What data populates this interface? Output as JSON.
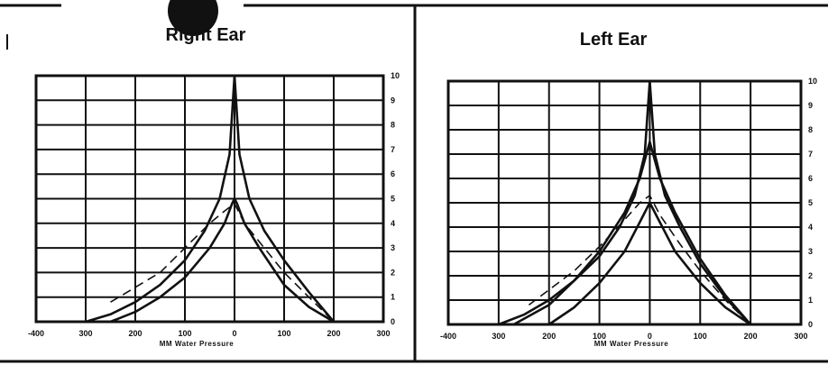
{
  "chart_data": [
    {
      "type": "line",
      "title": "Right Ear",
      "xlabel": "MM Water Pressure",
      "x_ticks": [
        "-400",
        "300",
        "200",
        "100",
        "0",
        "100",
        "200",
        "300"
      ],
      "y_ticks": [
        "0",
        "1",
        "2",
        "3",
        "4",
        "5",
        "6",
        "7",
        "8",
        "9",
        "10"
      ],
      "xlim": [
        -400,
        300
      ],
      "ylim": [
        0,
        10
      ],
      "grid": true,
      "series": [
        {
          "style": "solid",
          "x": [
            -300,
            -250,
            -200,
            -150,
            -100,
            -60,
            -30,
            -10,
            0,
            10,
            30,
            60,
            100,
            150,
            200
          ],
          "y": [
            0,
            0.3,
            0.8,
            1.5,
            2.5,
            3.7,
            5.0,
            6.8,
            10,
            6.8,
            5.0,
            3.7,
            2.5,
            1.2,
            0
          ]
        },
        {
          "style": "solid",
          "x": [
            -250,
            -200,
            -150,
            -100,
            -50,
            -20,
            -5,
            0,
            5,
            20,
            50,
            100,
            150,
            200
          ],
          "y": [
            0,
            0.4,
            1.0,
            1.8,
            3.0,
            4.0,
            4.8,
            5,
            4.8,
            4.0,
            3.0,
            1.5,
            0.6,
            0
          ]
        },
        {
          "style": "dashed",
          "x": [
            -250,
            -150,
            -100,
            -50,
            -20,
            0,
            20,
            60,
            100,
            150,
            200
          ],
          "y": [
            0.8,
            2.0,
            3.0,
            4.0,
            4.5,
            4.8,
            4.0,
            3.0,
            2.0,
            1.0,
            0
          ]
        }
      ]
    },
    {
      "type": "line",
      "title": "Left Ear",
      "xlabel": "MM Water Pressure",
      "x_ticks": [
        "-400",
        "300",
        "200",
        "100",
        "0",
        "100",
        "200",
        "300"
      ],
      "y_ticks": [
        "0",
        "1",
        "2",
        "3",
        "4",
        "5",
        "6",
        "7",
        "8",
        "9",
        "10"
      ],
      "xlim": [
        -400,
        300
      ],
      "ylim": [
        0,
        10
      ],
      "grid": true,
      "series": [
        {
          "style": "solid",
          "x": [
            -300,
            -250,
            -200,
            -150,
            -100,
            -60,
            -30,
            -10,
            0,
            10,
            30,
            60,
            100,
            150,
            200
          ],
          "y": [
            0,
            0.4,
            1.0,
            1.8,
            2.8,
            4.0,
            5.3,
            7.0,
            10,
            7.0,
            5.3,
            4.0,
            2.5,
            1.1,
            0
          ]
        },
        {
          "style": "solid",
          "x": [
            -270,
            -200,
            -150,
            -100,
            -50,
            -20,
            0,
            20,
            50,
            100,
            150,
            200
          ],
          "y": [
            0,
            0.8,
            1.8,
            3.0,
            4.6,
            6.0,
            7.5,
            6.0,
            4.6,
            2.7,
            1.2,
            0
          ]
        },
        {
          "style": "solid",
          "x": [
            -200,
            -150,
            -100,
            -50,
            -20,
            -5,
            0,
            5,
            20,
            50,
            100,
            150,
            200
          ],
          "y": [
            0,
            0.7,
            1.7,
            3.0,
            4.2,
            4.8,
            5,
            4.8,
            4.2,
            3.0,
            1.7,
            0.7,
            0
          ]
        },
        {
          "style": "dashed",
          "x": [
            -240,
            -150,
            -100,
            -50,
            -20,
            0,
            20,
            60,
            100,
            150,
            200
          ],
          "y": [
            0.8,
            2.2,
            3.2,
            4.3,
            5.0,
            5.3,
            4.5,
            3.3,
            2.2,
            1.0,
            0
          ]
        }
      ]
    }
  ]
}
